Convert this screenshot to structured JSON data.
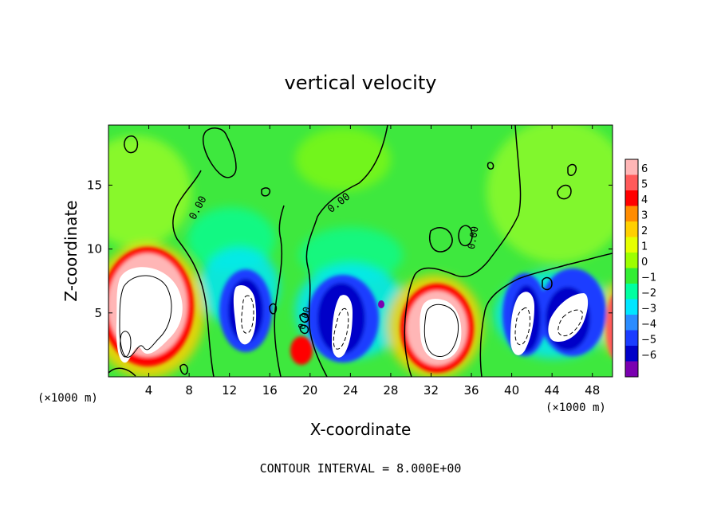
{
  "chart_data": {
    "type": "heatmap",
    "title": "vertical velocity",
    "xlabel": "X-coordinate",
    "ylabel": "Z-coordinate",
    "x_unit_label": "(×1000 m)",
    "y_unit_label": "(×1000 m)",
    "xlim": [
      0,
      50
    ],
    "ylim": [
      0,
      19.7
    ],
    "x_ticks": [
      4,
      8,
      12,
      16,
      20,
      24,
      28,
      32,
      36,
      40,
      44,
      48
    ],
    "y_ticks": [
      5,
      10,
      15
    ],
    "colorbar": {
      "ticks": [
        "6",
        "5",
        "4",
        "3",
        "2",
        "1",
        "0",
        "−1",
        "−2",
        "−3",
        "−4",
        "−5",
        "−6"
      ],
      "colors": [
        "#ffb6b6",
        "#ff5a5a",
        "#ff0000",
        "#ff8c00",
        "#ffd000",
        "#e6ff00",
        "#9dff00",
        "#33ee33",
        "#00ffa0",
        "#00e6ff",
        "#2a8cff",
        "#1a3cff",
        "#0000c8",
        "#7a00b0"
      ]
    },
    "contour_interval_label": "CONTOUR INTERVAL = 8.000E+00",
    "contour_labels": [
      "0.00",
      "0.00",
      "0.00",
      "0.00"
    ],
    "features": [
      {
        "name": "updraft",
        "x_center": 3.2,
        "z_center": 5.5,
        "sign": "positive"
      },
      {
        "name": "downdraft",
        "x_center": 13.5,
        "z_center": 5,
        "sign": "negative"
      },
      {
        "name": "weak updraft",
        "x_center": 19,
        "z_center": 2,
        "sign": "positive"
      },
      {
        "name": "downdraft",
        "x_center": 22.5,
        "z_center": 4.5,
        "sign": "negative"
      },
      {
        "name": "updraft",
        "x_center": 32.5,
        "z_center": 4.2,
        "sign": "positive"
      },
      {
        "name": "downdraft",
        "x_center": 41,
        "z_center": 4.2,
        "sign": "negative"
      },
      {
        "name": "downdraft",
        "x_center": 45.5,
        "z_center": 4.5,
        "sign": "negative"
      }
    ]
  }
}
